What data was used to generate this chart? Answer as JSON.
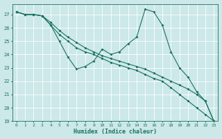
{
  "xlabel": "Humidex (Indice chaleur)",
  "x": [
    0,
    1,
    2,
    3,
    4,
    5,
    6,
    7,
    8,
    9,
    10,
    11,
    12,
    13,
    14,
    15,
    16,
    17,
    18,
    19,
    20,
    21,
    22,
    23
  ],
  "series": [
    [
      27.2,
      27.0,
      27.0,
      26.9,
      26.2,
      25.0,
      23.8,
      22.9,
      23.1,
      23.5,
      24.4,
      24.0,
      24.2,
      24.8,
      25.3,
      27.4,
      27.2,
      26.2,
      24.2,
      23.0,
      22.3,
      21.2,
      20.5,
      19.0
    ],
    [
      27.2,
      27.0,
      27.0,
      26.9,
      26.2,
      25.5,
      25.0,
      24.5,
      24.2,
      24.0,
      23.7,
      23.4,
      23.2,
      23.0,
      22.8,
      22.5,
      22.2,
      22.0,
      21.5,
      21.0,
      20.5,
      20.0,
      19.5,
      19.0
    ],
    [
      27.2,
      27.0,
      27.0,
      26.9,
      26.4,
      25.8,
      25.3,
      24.9,
      24.5,
      24.2,
      23.9,
      23.7,
      23.5,
      23.3,
      23.1,
      22.9,
      22.6,
      22.3,
      22.0,
      21.7,
      21.4,
      21.0,
      20.5,
      19.0
    ]
  ],
  "color": "#1a7060",
  "bg_color": "#cce8e8",
  "grid_color": "#ffffff",
  "ylim": [
    19,
    27.8
  ],
  "xlim": [
    -0.5,
    23.5
  ],
  "yticks": [
    19,
    20,
    21,
    22,
    23,
    24,
    25,
    26,
    27
  ],
  "xticks": [
    0,
    1,
    2,
    3,
    4,
    5,
    6,
    7,
    8,
    9,
    10,
    11,
    12,
    13,
    14,
    15,
    16,
    17,
    18,
    19,
    20,
    21,
    22,
    23
  ]
}
